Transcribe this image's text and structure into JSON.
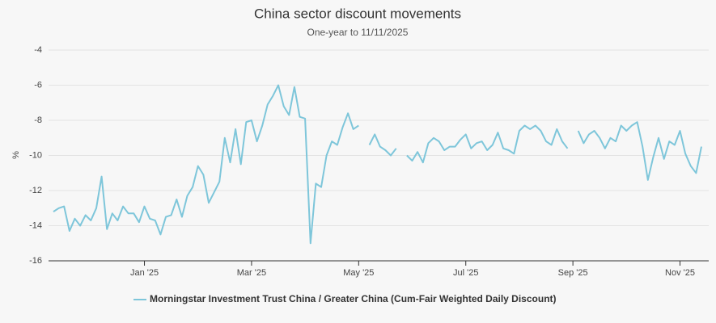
{
  "chart_data": {
    "type": "line",
    "title": "China sector discount movements",
    "subtitle": "One-year to 11/11/2025",
    "y_label": "%",
    "categories": [
      null,
      null,
      null,
      null,
      null,
      null,
      null,
      null,
      null,
      null,
      null,
      null,
      null,
      null,
      null,
      null,
      null,
      "Jan '25",
      null,
      null,
      null,
      null,
      null,
      null,
      null,
      null,
      null,
      null,
      null,
      null,
      null,
      null,
      null,
      null,
      null,
      null,
      null,
      "Mar '25",
      null,
      null,
      null,
      null,
      null,
      null,
      null,
      null,
      null,
      null,
      null,
      null,
      null,
      null,
      null,
      null,
      null,
      null,
      null,
      "May '25",
      null,
      null,
      null,
      null,
      null,
      null,
      null,
      null,
      null,
      null,
      null,
      null,
      null,
      null,
      null,
      null,
      null,
      null,
      null,
      "Jul '25",
      null,
      null,
      null,
      null,
      null,
      null,
      null,
      null,
      null,
      null,
      null,
      null,
      null,
      null,
      null,
      null,
      null,
      null,
      null,
      "Sep '25",
      null,
      null,
      null,
      null,
      null,
      null,
      null,
      null,
      null,
      null,
      null,
      null,
      null,
      null,
      null,
      null,
      null,
      null,
      null,
      "Nov '25",
      null,
      null,
      null,
      null
    ],
    "series": [
      {
        "name": "Morningstar Investment Trust China / Greater China (Cum-Fair Weighted Daily Discount)",
        "color": "#7ec6da",
        "values": [
          -13.2,
          -13.0,
          -12.9,
          -14.3,
          -13.6,
          -14.0,
          -13.4,
          -13.7,
          -13.0,
          -11.2,
          -14.2,
          -13.3,
          -13.7,
          -12.9,
          -13.3,
          -13.3,
          -13.8,
          -12.9,
          -13.6,
          -13.7,
          -14.5,
          -13.5,
          -13.4,
          -12.5,
          -13.5,
          -12.3,
          -11.8,
          -10.6,
          -11.1,
          -12.7,
          -12.1,
          -11.5,
          -9.0,
          -10.4,
          -8.5,
          -10.5,
          -8.1,
          -8.0,
          -9.2,
          -8.3,
          -7.1,
          -6.6,
          -6.0,
          -7.2,
          -7.7,
          -6.1,
          -7.8,
          -7.9,
          -15.0,
          -11.6,
          -11.8,
          -10.0,
          -9.2,
          -9.4,
          -8.4,
          -7.6,
          -8.5,
          -8.3,
          null,
          -9.4,
          -8.8,
          -9.5,
          -9.7,
          -10.0,
          -9.6,
          null,
          -10.0,
          -10.3,
          -9.8,
          -10.4,
          -9.3,
          -9.0,
          -9.2,
          -9.7,
          -9.5,
          -9.5,
          -9.1,
          -8.8,
          -9.6,
          -9.3,
          -9.2,
          -9.7,
          -9.4,
          -8.7,
          -9.6,
          -9.7,
          -9.9,
          -8.6,
          -8.3,
          -8.5,
          -8.3,
          -8.6,
          -9.2,
          -9.4,
          -8.5,
          -9.2,
          -9.6,
          null,
          -8.6,
          -9.3,
          -8.8,
          -8.6,
          -9.0,
          -9.6,
          -9.0,
          -9.2,
          -8.3,
          -8.6,
          -8.3,
          -8.1,
          -9.5,
          -11.4,
          -10.1,
          -9.0,
          -10.2,
          -9.2,
          -9.4,
          -8.6,
          -9.9,
          -10.6,
          -11.0,
          -9.5
        ]
      }
    ],
    "ylim": [
      -16,
      -4
    ],
    "yticks": [
      -16,
      -14,
      -12,
      -10,
      -8,
      -6,
      -4
    ],
    "grid": true
  }
}
